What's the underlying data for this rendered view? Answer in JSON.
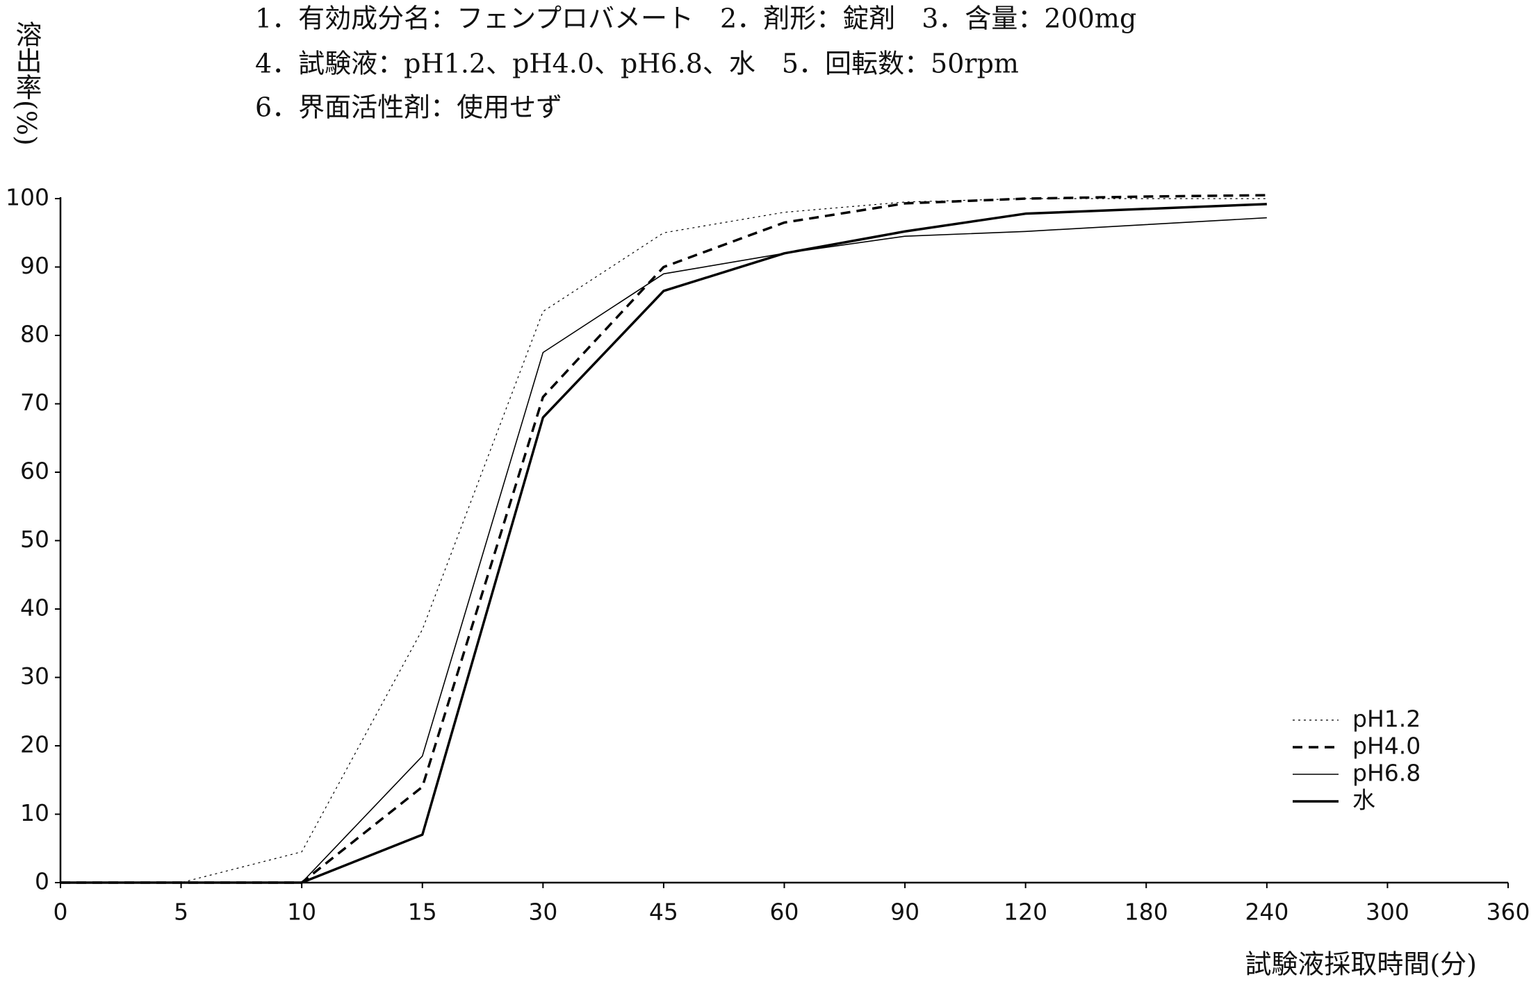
{
  "chart_data": {
    "type": "line",
    "title_lines": [
      "1．有効成分名：フェンプロバメート　2．剤形：錠剤　3．含量：200mg",
      "4．試験液：pH1.2、pH4.0、pH6.8、水　5．回転数：50rpm",
      "6．界面活性剤：使用せず"
    ],
    "y_label": "溶出率(%)",
    "x_label": "試験液採取時間(分)",
    "categories": [
      "0",
      "5",
      "10",
      "15",
      "30",
      "45",
      "60",
      "90",
      "120",
      "180",
      "240",
      "300",
      "360"
    ],
    "series": [
      {
        "name": "pH1.2",
        "color": "#000000",
        "line_style": "dotted",
        "line_width": 1.2,
        "values": [
          0,
          0,
          4.5,
          37,
          83.5,
          95,
          98,
          99.5,
          100,
          100,
          100,
          null,
          null
        ]
      },
      {
        "name": "pH4.0",
        "color": "#000000",
        "line_style": "dashed",
        "line_width": 3.5,
        "values": [
          0,
          0,
          0,
          14,
          71,
          90,
          96.5,
          99.3,
          100,
          100.3,
          100.5,
          null,
          null
        ]
      },
      {
        "name": "pH6.8",
        "color": "#000000",
        "line_style": "solid",
        "line_width": 1.6,
        "values": [
          0,
          0,
          0,
          18.5,
          77.5,
          89,
          92,
          94.5,
          95.2,
          96.2,
          97.2,
          null,
          null
        ]
      },
      {
        "name": "水",
        "color": "#000000",
        "line_style": "solid",
        "line_width": 3.5,
        "values": [
          0,
          0,
          0,
          7,
          68,
          86.5,
          92,
          95.2,
          97.8,
          98.5,
          99.2,
          null,
          null
        ]
      }
    ],
    "ylim": [
      0,
      100
    ],
    "yticks": [
      0,
      10,
      20,
      30,
      40,
      50,
      60,
      70,
      80,
      90,
      100
    ],
    "legend": "lower right",
    "grid": false
  }
}
